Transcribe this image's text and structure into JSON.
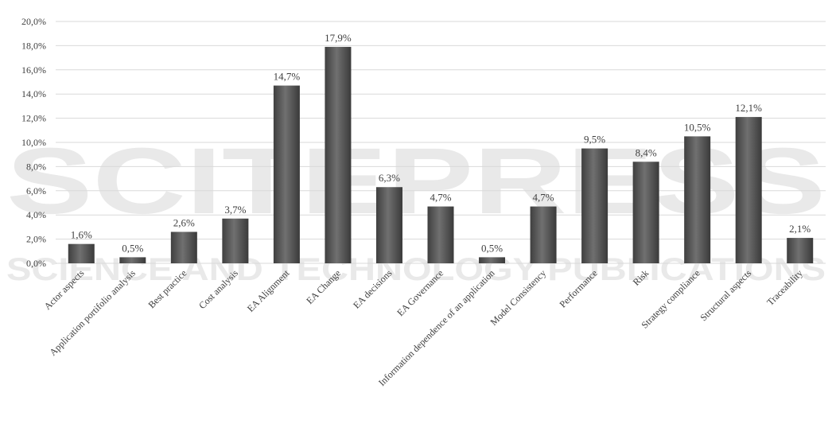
{
  "chart_data": {
    "type": "bar",
    "title": "",
    "xlabel": "",
    "ylabel": "",
    "ylim": [
      0,
      20
    ],
    "ytick_step": 2,
    "ytick_labels": [
      "0,0%",
      "2,0%",
      "4,0%",
      "6,0%",
      "8,0%",
      "10,0%",
      "12,0%",
      "14,0%",
      "16,0%",
      "18,0%",
      "20,0%"
    ],
    "grid": true,
    "legend": "none",
    "bar_color": "#595959",
    "categories": [
      "Actor aspects",
      "Application portifolio analysis",
      "Best practice",
      "Cost analysis",
      "EA Alignment",
      "EA Change",
      "EA decisions",
      "EA Governance",
      "Information dependence of an application",
      "Model Consistency",
      "Performance",
      "Risk",
      "Strategy compliance",
      "Structural aspects",
      "Traceability"
    ],
    "values": [
      1.6,
      0.5,
      2.6,
      3.7,
      14.7,
      17.9,
      6.3,
      4.7,
      0.5,
      4.7,
      9.5,
      8.4,
      10.5,
      12.1,
      2.1
    ],
    "data_labels": [
      "1,6%",
      "0,5%",
      "2,6%",
      "3,7%",
      "14,7%",
      "17,9%",
      "6,3%",
      "4,7%",
      "0,5%",
      "4,7%",
      "9,5%",
      "8,4%",
      "10,5%",
      "12,1%",
      "2,1%"
    ]
  },
  "watermark": {
    "line1": "SCITEPRESS",
    "line2": "SCIENCE AND TECHNOLOGY PUBLICATIONS"
  }
}
